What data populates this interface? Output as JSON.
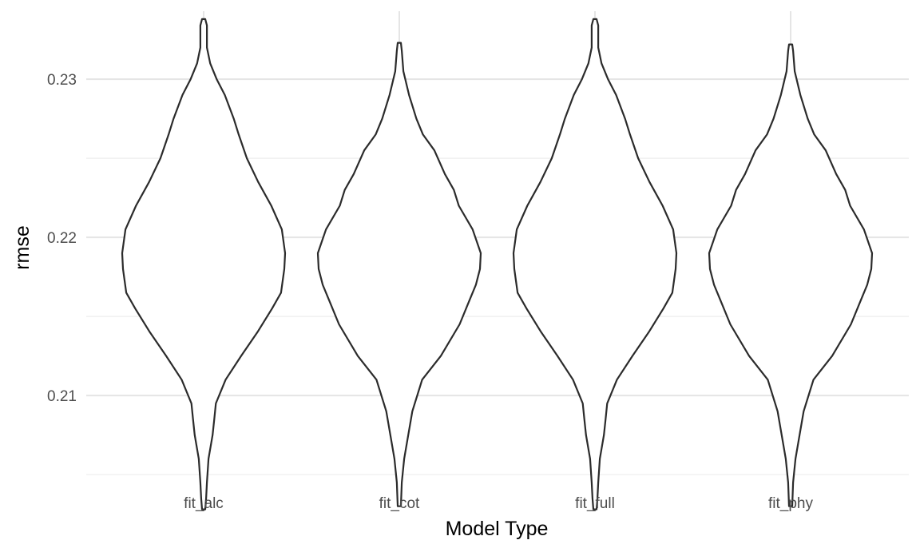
{
  "chart_data": {
    "type": "violin",
    "title": "",
    "xlabel": "Model Type",
    "ylabel": "rmse",
    "categories": [
      "fit_alc",
      "fit_cot",
      "fit_full",
      "fit_phy"
    ],
    "ylim": [
      0.2046,
      0.2343
    ],
    "yticks": [
      0.21,
      0.22,
      0.23
    ],
    "grid": true,
    "legend": "none",
    "series": [
      {
        "category": "fit_alc",
        "y_range": [
          0.2028,
          0.2338
        ],
        "density_profile": [
          [
            0.2338,
            0.02
          ],
          [
            0.2334,
            0.04
          ],
          [
            0.232,
            0.04
          ],
          [
            0.231,
            0.08
          ],
          [
            0.23,
            0.16
          ],
          [
            0.229,
            0.26
          ],
          [
            0.2275,
            0.37
          ],
          [
            0.2265,
            0.43
          ],
          [
            0.225,
            0.53
          ],
          [
            0.2235,
            0.67
          ],
          [
            0.222,
            0.83
          ],
          [
            0.2205,
            0.96
          ],
          [
            0.219,
            1.0
          ],
          [
            0.218,
            0.99
          ],
          [
            0.2165,
            0.95
          ],
          [
            0.2155,
            0.84
          ],
          [
            0.214,
            0.66
          ],
          [
            0.2125,
            0.46
          ],
          [
            0.211,
            0.27
          ],
          [
            0.2095,
            0.15
          ],
          [
            0.2085,
            0.13
          ],
          [
            0.2075,
            0.11
          ],
          [
            0.206,
            0.06
          ],
          [
            0.2045,
            0.04
          ],
          [
            0.2035,
            0.03
          ],
          [
            0.2028,
            0.02
          ]
        ]
      },
      {
        "category": "fit_cot",
        "y_range": [
          0.203,
          0.2323
        ],
        "density_profile": [
          [
            0.2323,
            0.02
          ],
          [
            0.2318,
            0.03
          ],
          [
            0.2305,
            0.05
          ],
          [
            0.229,
            0.12
          ],
          [
            0.2275,
            0.21
          ],
          [
            0.2265,
            0.29
          ],
          [
            0.2255,
            0.43
          ],
          [
            0.224,
            0.56
          ],
          [
            0.223,
            0.67
          ],
          [
            0.222,
            0.73
          ],
          [
            0.2205,
            0.9
          ],
          [
            0.219,
            1.0
          ],
          [
            0.218,
            0.99
          ],
          [
            0.217,
            0.94
          ],
          [
            0.216,
            0.86
          ],
          [
            0.2145,
            0.74
          ],
          [
            0.2125,
            0.51
          ],
          [
            0.211,
            0.28
          ],
          [
            0.209,
            0.16
          ],
          [
            0.2075,
            0.11
          ],
          [
            0.206,
            0.06
          ],
          [
            0.2045,
            0.03
          ],
          [
            0.203,
            0.02
          ]
        ]
      },
      {
        "category": "fit_full",
        "y_range": [
          0.2028,
          0.2338
        ],
        "density_profile": [
          [
            0.2338,
            0.02
          ],
          [
            0.2334,
            0.04
          ],
          [
            0.232,
            0.04
          ],
          [
            0.231,
            0.08
          ],
          [
            0.23,
            0.16
          ],
          [
            0.229,
            0.26
          ],
          [
            0.2275,
            0.37
          ],
          [
            0.2265,
            0.43
          ],
          [
            0.225,
            0.53
          ],
          [
            0.2235,
            0.67
          ],
          [
            0.222,
            0.83
          ],
          [
            0.2205,
            0.96
          ],
          [
            0.219,
            1.0
          ],
          [
            0.218,
            0.99
          ],
          [
            0.2165,
            0.95
          ],
          [
            0.2155,
            0.84
          ],
          [
            0.214,
            0.66
          ],
          [
            0.2125,
            0.46
          ],
          [
            0.211,
            0.27
          ],
          [
            0.2095,
            0.15
          ],
          [
            0.2085,
            0.13
          ],
          [
            0.2075,
            0.11
          ],
          [
            0.206,
            0.06
          ],
          [
            0.2045,
            0.04
          ],
          [
            0.2035,
            0.03
          ],
          [
            0.2028,
            0.02
          ]
        ]
      },
      {
        "category": "fit_phy",
        "y_range": [
          0.203,
          0.2322
        ],
        "density_profile": [
          [
            0.2322,
            0.02
          ],
          [
            0.2318,
            0.03
          ],
          [
            0.2305,
            0.05
          ],
          [
            0.229,
            0.12
          ],
          [
            0.2275,
            0.21
          ],
          [
            0.2265,
            0.29
          ],
          [
            0.2255,
            0.43
          ],
          [
            0.224,
            0.56
          ],
          [
            0.223,
            0.67
          ],
          [
            0.222,
            0.73
          ],
          [
            0.2205,
            0.9
          ],
          [
            0.219,
            1.0
          ],
          [
            0.218,
            0.99
          ],
          [
            0.217,
            0.94
          ],
          [
            0.216,
            0.86
          ],
          [
            0.2145,
            0.74
          ],
          [
            0.2125,
            0.51
          ],
          [
            0.211,
            0.28
          ],
          [
            0.209,
            0.16
          ],
          [
            0.2075,
            0.11
          ],
          [
            0.206,
            0.06
          ],
          [
            0.2045,
            0.03
          ],
          [
            0.203,
            0.02
          ]
        ]
      }
    ]
  }
}
